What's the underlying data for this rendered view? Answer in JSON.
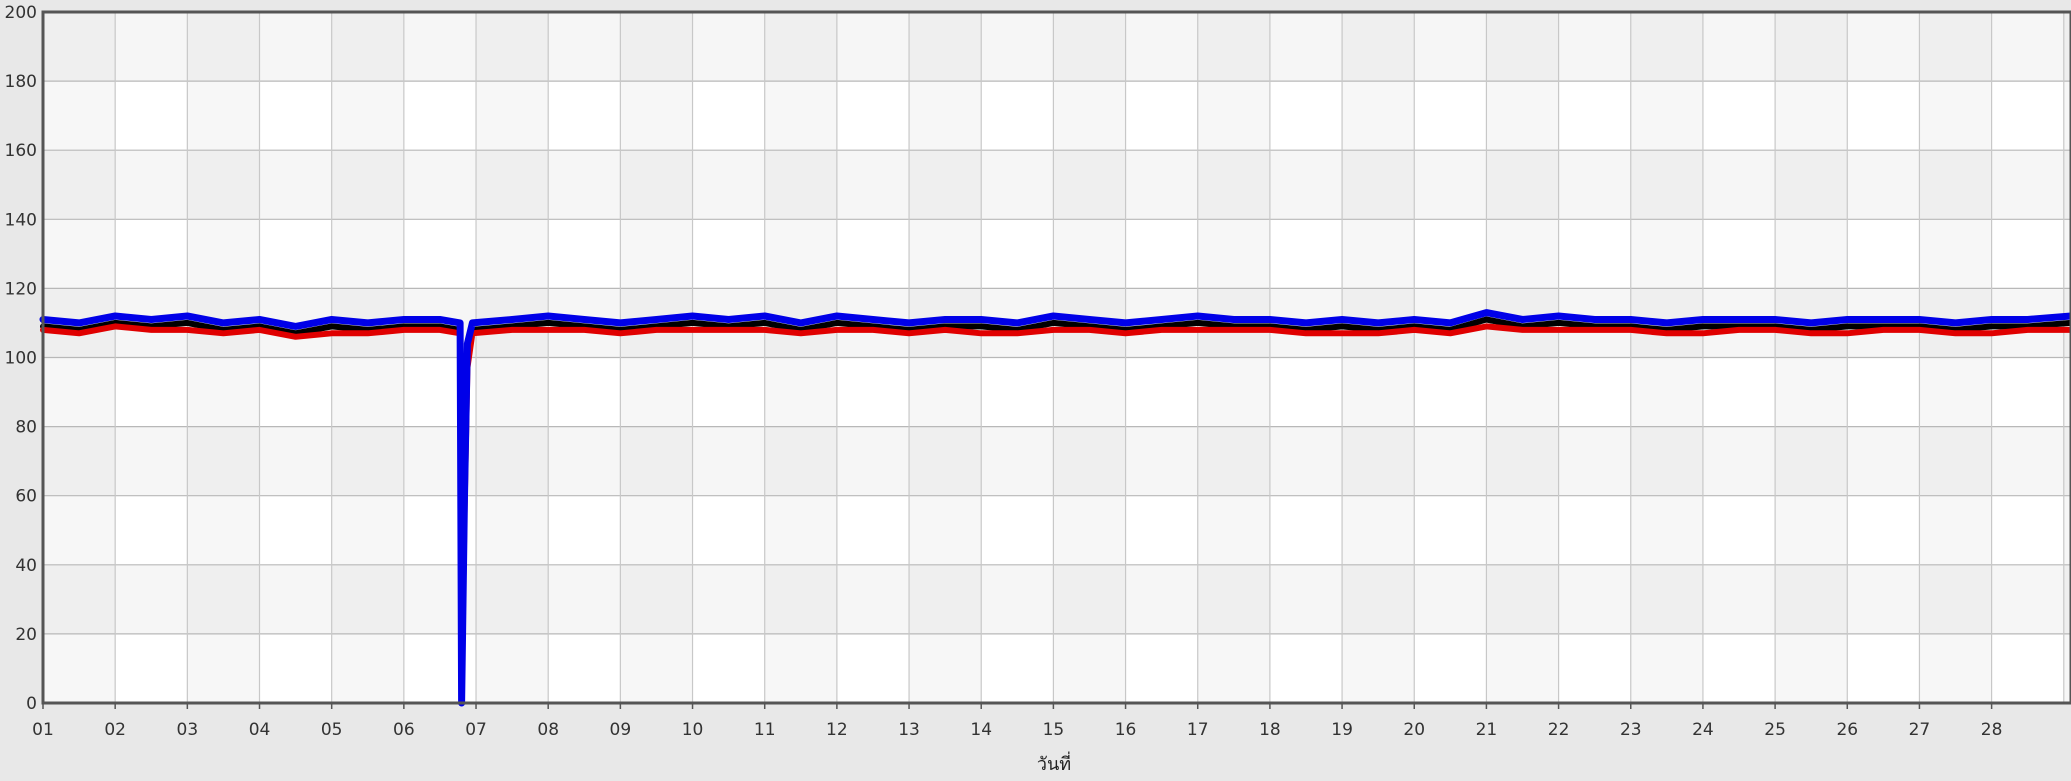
{
  "chart_data": {
    "type": "line",
    "title": "",
    "xlabel": "วันที่",
    "ylabel": "",
    "ylim": [
      0,
      200
    ],
    "yticks": [
      0,
      20,
      40,
      60,
      80,
      100,
      120,
      140,
      160,
      180,
      200
    ],
    "xlim": [
      1,
      29.1
    ],
    "categories": [
      "01",
      "02",
      "03",
      "04",
      "05",
      "06",
      "07",
      "08",
      "09",
      "10",
      "11",
      "12",
      "13",
      "14",
      "15",
      "16",
      "17",
      "18",
      "19",
      "20",
      "21",
      "22",
      "23",
      "24",
      "25",
      "26",
      "27",
      "28"
    ],
    "grid": true,
    "legend": "none",
    "series": [
      {
        "color": "#000000",
        "x": [
          1.0,
          1.5,
          2.0,
          2.5,
          3.0,
          3.5,
          4.0,
          4.5,
          5.0,
          5.5,
          6.0,
          6.5,
          6.78,
          6.8,
          6.84,
          6.88,
          6.95,
          7.5,
          8.0,
          8.5,
          9.0,
          9.5,
          10.0,
          10.5,
          11.0,
          11.5,
          12.0,
          12.5,
          13.0,
          13.5,
          14.0,
          14.5,
          15.0,
          15.5,
          16.0,
          16.5,
          17.0,
          17.5,
          18.0,
          18.5,
          19.0,
          19.5,
          20.0,
          20.5,
          21.0,
          21.5,
          22.0,
          22.5,
          23.0,
          23.5,
          24.0,
          24.5,
          25.0,
          25.5,
          26.0,
          26.5,
          27.0,
          27.5,
          28.0,
          28.5,
          29.1
        ],
        "y": [
          109,
          108,
          110,
          109,
          110,
          108,
          109,
          107,
          109,
          108,
          109,
          109,
          108,
          1,
          60,
          100,
          108,
          109,
          110,
          109,
          108,
          109,
          110,
          109,
          110,
          108,
          110,
          109,
          108,
          109,
          109,
          108,
          110,
          109,
          108,
          109,
          110,
          109,
          109,
          108,
          109,
          108,
          109,
          108,
          111,
          109,
          110,
          109,
          109,
          108,
          109,
          109,
          109,
          108,
          109,
          109,
          109,
          108,
          109,
          109,
          110
        ]
      },
      {
        "color": "#e00000",
        "x": [
          1.0,
          1.5,
          2.0,
          2.5,
          3.0,
          3.5,
          4.0,
          4.5,
          5.0,
          5.5,
          6.0,
          6.5,
          6.78,
          6.8,
          6.84,
          6.88,
          6.95,
          7.5,
          8.0,
          8.5,
          9.0,
          9.5,
          10.0,
          10.5,
          11.0,
          11.5,
          12.0,
          12.5,
          13.0,
          13.5,
          14.0,
          14.5,
          15.0,
          15.5,
          16.0,
          16.5,
          17.0,
          17.5,
          18.0,
          18.5,
          19.0,
          19.5,
          20.0,
          20.5,
          21.0,
          21.5,
          22.0,
          22.5,
          23.0,
          23.5,
          24.0,
          24.5,
          25.0,
          25.5,
          26.0,
          26.5,
          27.0,
          27.5,
          28.0,
          28.5,
          29.1
        ],
        "y": [
          108,
          107,
          109,
          108,
          108,
          107,
          108,
          106,
          107,
          107,
          108,
          108,
          107,
          2,
          55,
          97,
          107,
          108,
          108,
          108,
          107,
          108,
          108,
          108,
          108,
          107,
          108,
          108,
          107,
          108,
          107,
          107,
          108,
          108,
          107,
          108,
          108,
          108,
          108,
          107,
          107,
          107,
          108,
          107,
          109,
          108,
          108,
          108,
          108,
          107,
          107,
          108,
          108,
          107,
          107,
          108,
          108,
          107,
          107,
          108,
          108
        ]
      },
      {
        "color": "#0000e8",
        "x": [
          1.0,
          1.5,
          2.0,
          2.5,
          3.0,
          3.5,
          4.0,
          4.5,
          5.0,
          5.5,
          6.0,
          6.5,
          6.78,
          6.8,
          6.84,
          6.88,
          6.95,
          7.5,
          8.0,
          8.5,
          9.0,
          9.5,
          10.0,
          10.5,
          11.0,
          11.5,
          12.0,
          12.5,
          13.0,
          13.5,
          14.0,
          14.5,
          15.0,
          15.5,
          16.0,
          16.5,
          17.0,
          17.5,
          18.0,
          18.5,
          19.0,
          19.5,
          20.0,
          20.5,
          21.0,
          21.5,
          22.0,
          22.5,
          23.0,
          23.5,
          24.0,
          24.5,
          25.0,
          25.5,
          26.0,
          26.5,
          27.0,
          27.5,
          28.0,
          28.5,
          29.1
        ],
        "y": [
          111,
          110,
          112,
          111,
          112,
          110,
          111,
          109,
          111,
          110,
          111,
          111,
          110,
          0,
          60,
          104,
          110,
          111,
          112,
          111,
          110,
          111,
          112,
          111,
          112,
          110,
          112,
          111,
          110,
          111,
          111,
          110,
          112,
          111,
          110,
          111,
          112,
          111,
          111,
          110,
          111,
          110,
          111,
          110,
          113,
          111,
          112,
          111,
          111,
          110,
          111,
          111,
          111,
          110,
          111,
          111,
          111,
          110,
          111,
          111,
          112
        ]
      }
    ]
  }
}
